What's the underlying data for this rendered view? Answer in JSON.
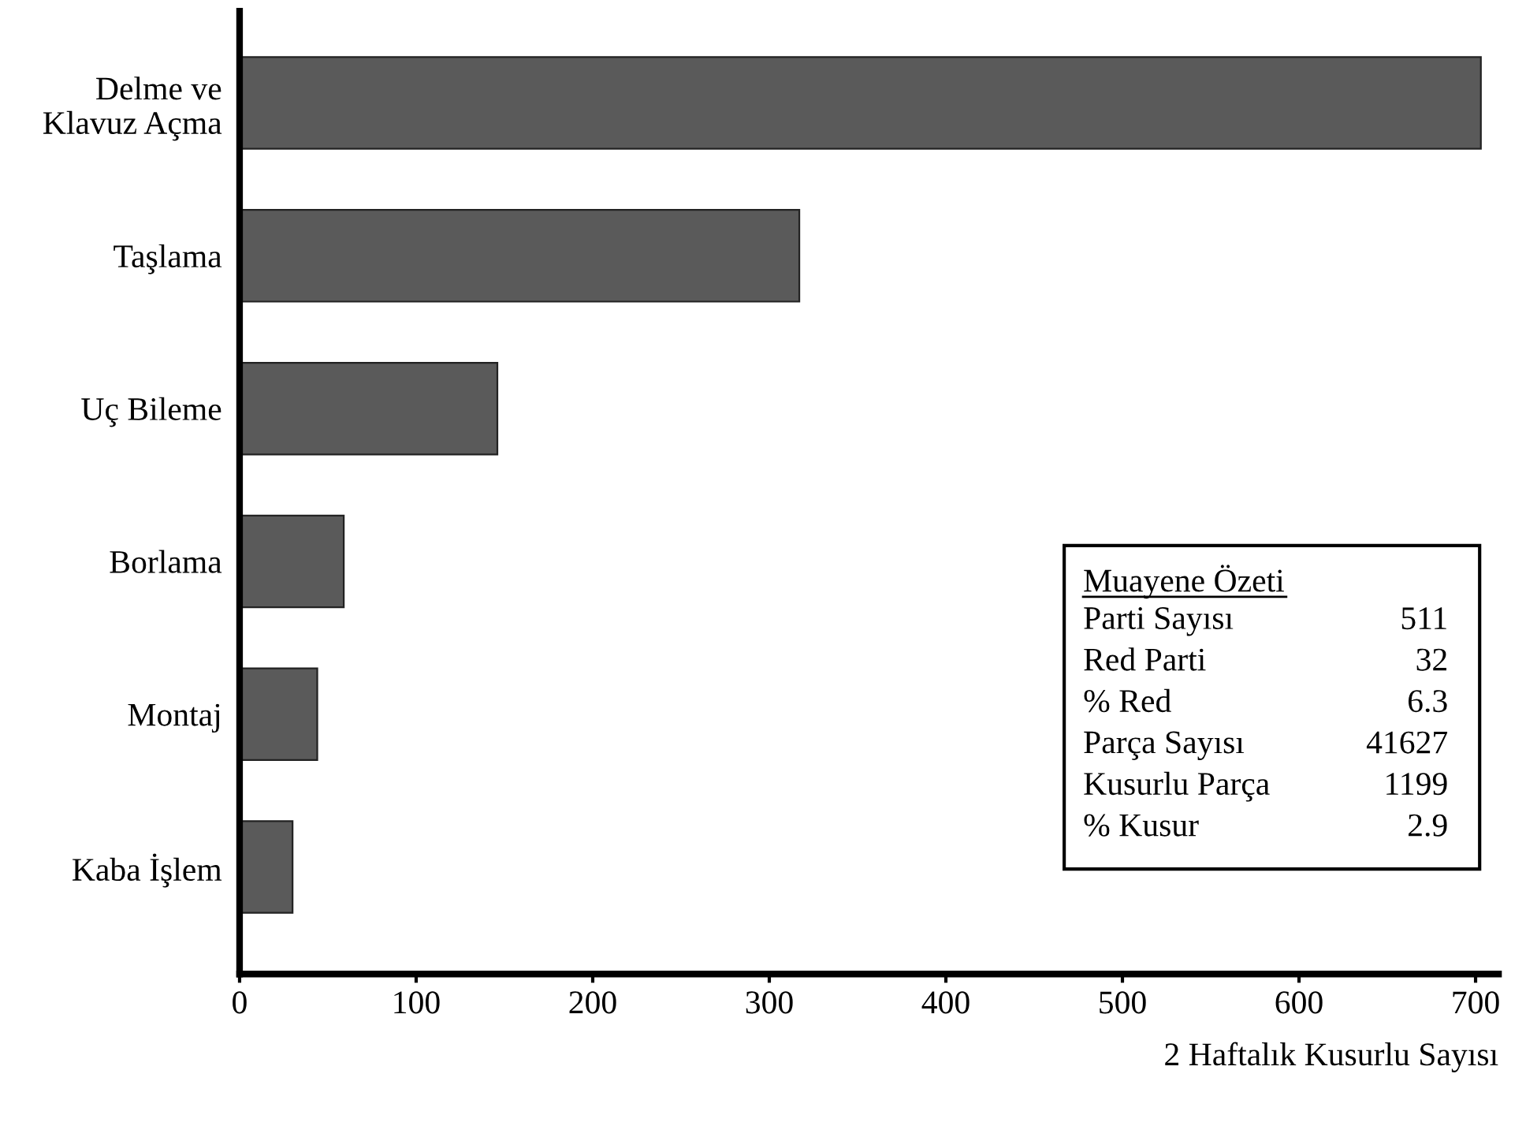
{
  "chart_data": {
    "type": "bar",
    "orientation": "horizontal",
    "xlabel": "2 Haftalık Kusurlu Sayısı",
    "categories": [
      "Delme ve\nKlavuz Açma",
      "Taşlama",
      "Uç Bileme",
      "Borlama",
      "Montaj",
      "Kaba İşlem"
    ],
    "values": [
      703,
      317,
      146,
      59,
      44,
      30
    ],
    "color": "#5a5a5a",
    "xlim": [
      0,
      713
    ],
    "xticks": [
      0,
      100,
      200,
      300,
      400,
      500,
      600,
      700
    ],
    "grid": false,
    "legend": false,
    "annotations": [
      "Muayene Özeti",
      "Parti Sayısı",
      "511",
      "Red Parti",
      "32",
      "% Red",
      "6.3",
      "Parça Sayısı",
      "41627",
      "Kusurlu Parça",
      "1199",
      "% Kusur",
      "2.9"
    ]
  }
}
